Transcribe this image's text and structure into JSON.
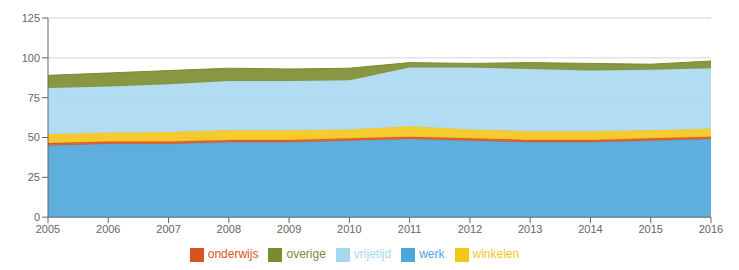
{
  "chart_data": {
    "type": "area",
    "stacked": true,
    "x": [
      2005,
      2006,
      2007,
      2008,
      2009,
      2010,
      2011,
      2012,
      2013,
      2014,
      2015,
      2016
    ],
    "xlim": [
      2005,
      2016
    ],
    "xticks": [
      2005,
      2006,
      2007,
      2008,
      2009,
      2010,
      2011,
      2012,
      2013,
      2014,
      2015,
      2016
    ],
    "ylim": [
      0,
      125
    ],
    "yticks": [
      0,
      25,
      50,
      75,
      100,
      125
    ],
    "grid": true,
    "legend": "bottom",
    "series": [
      {
        "name": "werk",
        "color": "#4da6d9",
        "values": [
          45,
          46,
          46,
          47,
          47,
          48,
          49,
          48,
          47,
          47,
          48,
          49
        ]
      },
      {
        "name": "onderwijs",
        "color": "#d9531e",
        "values": [
          1.5,
          1.5,
          1.5,
          1.5,
          1.5,
          1.5,
          1.5,
          1.5,
          1.5,
          1.5,
          1.5,
          1.5
        ]
      },
      {
        "name": "winkelen",
        "color": "#f5c518",
        "values": [
          5.5,
          5.5,
          6.0,
          6.0,
          6.0,
          5.5,
          6.5,
          5.5,
          5.5,
          5.5,
          5.0,
          5.0
        ]
      },
      {
        "name": "vrijetijd",
        "color": "#a8d8f0",
        "values": [
          29,
          29,
          30,
          31,
          31,
          31,
          37,
          39,
          39,
          38,
          38,
          38
        ]
      },
      {
        "name": "overige",
        "color": "#7a8c2e",
        "values": [
          8,
          8.5,
          8.5,
          8.0,
          7.5,
          7.5,
          3.0,
          2.5,
          4.0,
          4.5,
          3.5,
          4.5
        ]
      }
    ]
  }
}
